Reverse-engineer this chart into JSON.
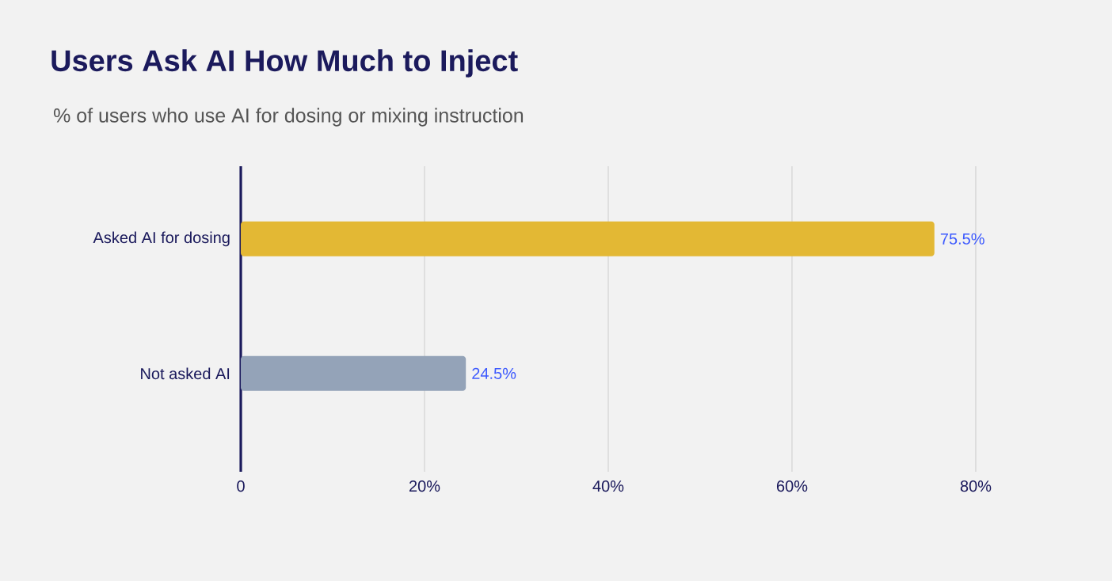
{
  "chart_data": {
    "type": "bar",
    "orientation": "horizontal",
    "title": "Users Ask AI How Much to Inject",
    "subtitle": "% of users who use AI for dosing or mixing instruction",
    "categories": [
      "Asked AI for dosing",
      "Not asked AI"
    ],
    "values": [
      75.5,
      24.5
    ],
    "colors": [
      "#e3b834",
      "#94a3b8"
    ],
    "value_labels": [
      "75.5%",
      "24.5%"
    ],
    "xlim": [
      0,
      80
    ],
    "xticks": [
      {
        "value": 0,
        "label": "0"
      },
      {
        "value": 20,
        "label": "20%"
      },
      {
        "value": 40,
        "label": "40%"
      },
      {
        "value": 60,
        "label": "60%"
      },
      {
        "value": 80,
        "label": "80%"
      }
    ],
    "grid": "x"
  }
}
